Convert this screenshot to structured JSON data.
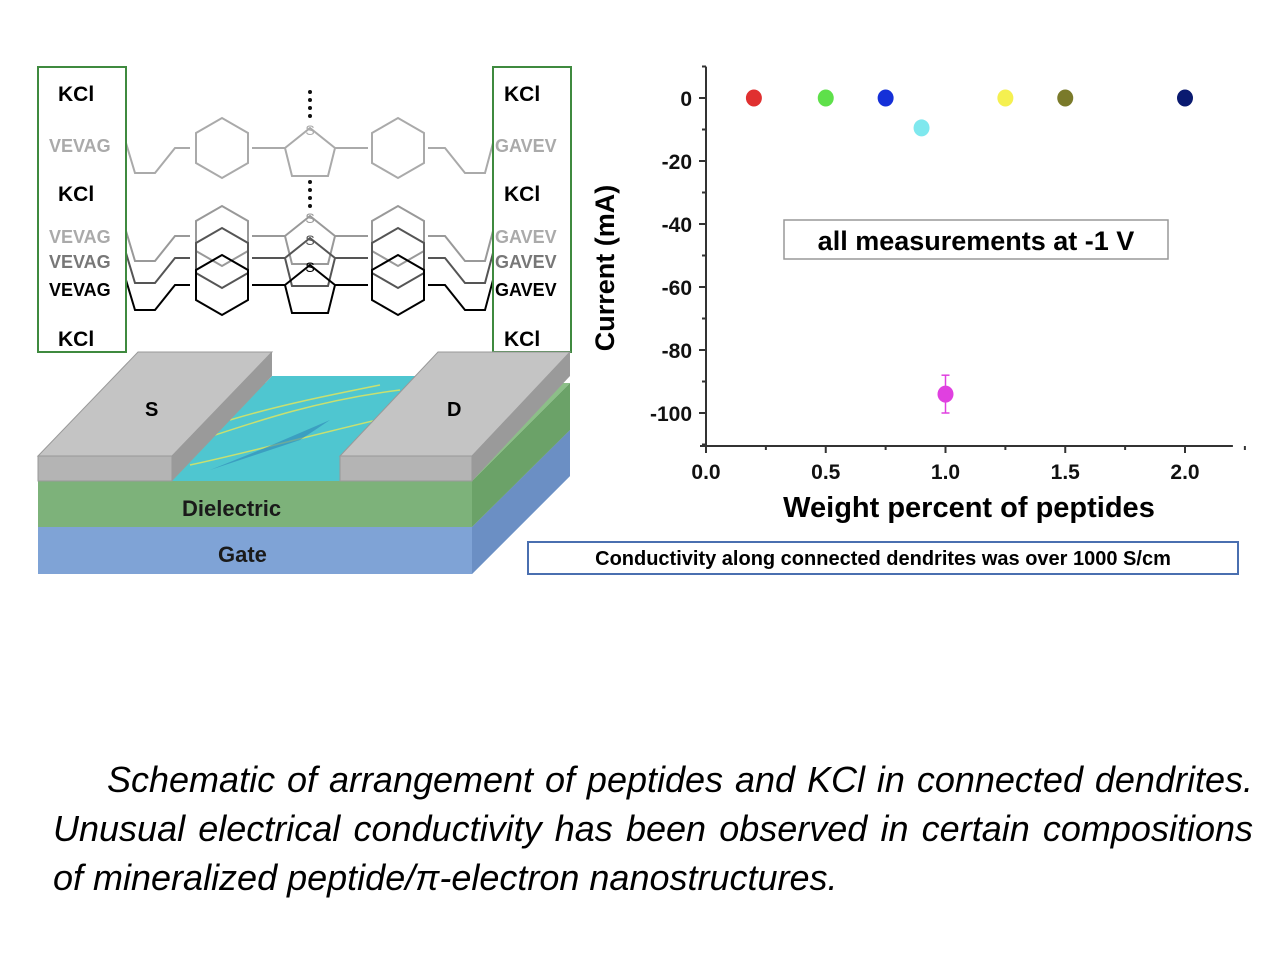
{
  "diagram": {
    "left_labels": [
      "KCl",
      "VEVAG",
      "KCl",
      "VEVAG",
      "VEVAG",
      "VEVAG",
      "KCl"
    ],
    "right_labels": [
      "KCl",
      "GAVEV",
      "KCl",
      "GAVEV",
      "GAVEV",
      "GAVEV",
      "KCl"
    ],
    "sulfur": "S",
    "source": "S",
    "drain": "D",
    "dielectric": "Dielectric",
    "gate": "Gate"
  },
  "chart_data": {
    "type": "scatter",
    "xlabel": "Weight percent of peptides",
    "ylabel": "Current (mA)",
    "xlim": [
      0,
      2.2
    ],
    "ylim": [
      -110,
      9
    ],
    "xticks": [
      "0.0",
      "0.5",
      "1.0",
      "1.5",
      "2.0"
    ],
    "yticks": [
      "0",
      "-20",
      "-40",
      "-60",
      "-80",
      "-100"
    ],
    "grid": false,
    "annotation": "all measurements at -1 V",
    "points": [
      {
        "x": 0.2,
        "y": 0,
        "color": "#e03030"
      },
      {
        "x": 0.5,
        "y": 0,
        "color": "#5ee04a"
      },
      {
        "x": 0.75,
        "y": 0,
        "color": "#1530d8"
      },
      {
        "x": 0.9,
        "y": -9.5,
        "color": "#7fe8ee"
      },
      {
        "x": 1.0,
        "y": -94,
        "color": "#e040e0",
        "error": 6
      },
      {
        "x": 1.25,
        "y": 0,
        "color": "#f5f050"
      },
      {
        "x": 1.5,
        "y": 0,
        "color": "#7a7a2a"
      },
      {
        "x": 2.0,
        "y": 0,
        "color": "#0a1a70"
      }
    ]
  },
  "note": "Conductivity along connected dendrites was over 1000 S/cm",
  "caption": "Schematic of arrangement of peptides and KCl in connected dendrites. Unusual electrical conductivity has been observed in certain compositions of mineralized peptide/π-electron nanostructures."
}
